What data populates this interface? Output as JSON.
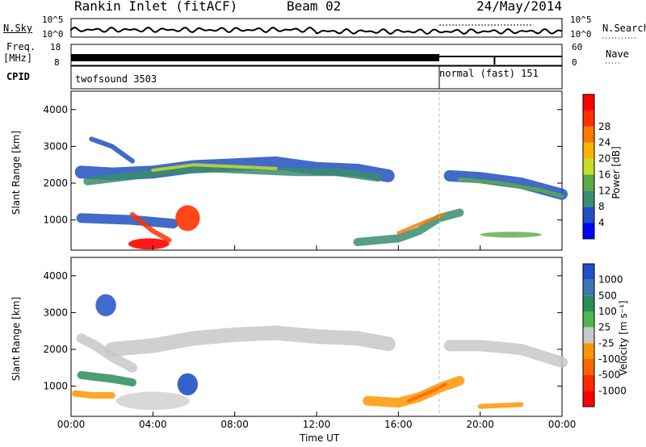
{
  "header": {
    "station": "Rankin Inlet (fitACF)",
    "beam": "Beam 02",
    "date": "24/May/2014"
  },
  "noise_panel": {
    "left_label": "N.Sky",
    "right_label": "N.Search",
    "ticks_left": [
      "10^5",
      "10^0"
    ],
    "ticks_right": [
      "10^5",
      "10^0"
    ]
  },
  "freq_panel": {
    "left_label_1": "Freq.",
    "left_label_2": "[MHz]",
    "right_label": "Nave",
    "ticks_left": [
      "18",
      "8"
    ],
    "ticks_right": [
      "60",
      "0"
    ]
  },
  "cpid_panel": {
    "label": "CPID",
    "modes": [
      "twofsound 3503",
      "normal (fast) 151"
    ]
  },
  "chart_data": [
    {
      "type": "heatmap",
      "title": "",
      "xlabel": "",
      "ylabel": "Slant Range [km]",
      "xlim": [
        "00:00",
        "24:00"
      ],
      "ylim": [
        180,
        4500
      ],
      "y_ticks": [
        1000,
        2000,
        3000,
        4000
      ],
      "colorbar": {
        "label": "Power [dB]",
        "ticks": [
          4,
          8,
          12,
          16,
          20,
          24,
          28
        ],
        "colors": [
          "#0000ff",
          "#2050c0",
          "#3c8c6e",
          "#5aaa46",
          "#c8dc28",
          "#ffb400",
          "#ff7800",
          "#ff3200",
          "#ff0000"
        ]
      }
    },
    {
      "type": "heatmap",
      "title": "",
      "xlabel": "Time UT",
      "ylabel": "Slant Range [km]",
      "xlim": [
        "00:00",
        "24:00"
      ],
      "ylim": [
        180,
        4500
      ],
      "x_ticks": [
        "00:00",
        "04:00",
        "08:00",
        "12:00",
        "16:00",
        "20:00",
        "00:00"
      ],
      "y_ticks": [
        1000,
        2000,
        3000,
        4000
      ],
      "colorbar": {
        "label": "Velocity [m s⁻¹]",
        "ticks": [
          1000,
          500,
          100,
          25,
          -25,
          -100,
          -500,
          -1000
        ],
        "colors": [
          "#2050c8",
          "#3c78b4",
          "#2e8c5a",
          "#50b450",
          "#c8c8c8",
          "#ff9600",
          "#ff6400",
          "#ff2800",
          "#ff0000"
        ]
      }
    }
  ]
}
